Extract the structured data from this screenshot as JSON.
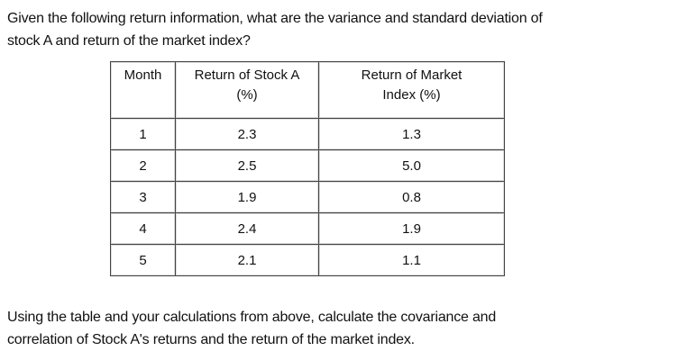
{
  "question": {
    "lines": [
      "Given the following return information, what are the variance and standard deviation of",
      "stock A and return of the market index?"
    ]
  },
  "table": {
    "header": [
      [
        "Month"
      ],
      [
        "Return of Stock A",
        "(%)"
      ],
      [
        "Return of Market",
        "Index (%)"
      ]
    ],
    "rows": [
      [
        "1",
        "2.3",
        "1.3"
      ],
      [
        "2",
        "2.5",
        "5.0"
      ],
      [
        "3",
        "1.9",
        "0.8"
      ],
      [
        "4",
        "2.4",
        "1.9"
      ],
      [
        "5",
        "2.1",
        "1.1"
      ]
    ]
  },
  "followup": {
    "lines": [
      "Using the table and your calculations from above, calculate the covariance and",
      "correlation of Stock A's returns and the return of the market index."
    ]
  }
}
